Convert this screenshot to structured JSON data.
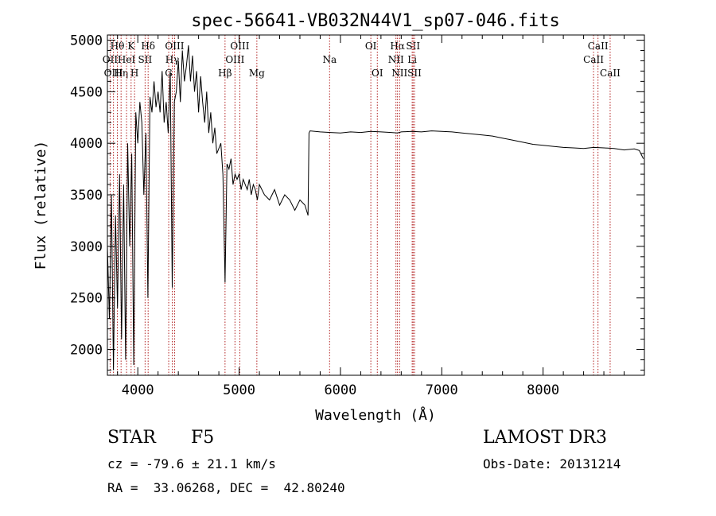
{
  "chart_data": {
    "type": "line",
    "title": "spec-56641-VB032N44V1_sp07-046.fits",
    "xlabel": "Wavelength (Å)",
    "ylabel": "Flux (relative)",
    "xlim": [
      3700,
      9000
    ],
    "ylim": [
      1750,
      5050
    ],
    "xticks": [
      4000,
      5000,
      6000,
      7000,
      8000
    ],
    "yticks": [
      2000,
      2500,
      3000,
      3500,
      4000,
      4500,
      5000
    ],
    "spectrum": {
      "name": "flux",
      "x": [
        3700,
        3720,
        3740,
        3760,
        3780,
        3800,
        3820,
        3840,
        3860,
        3880,
        3900,
        3920,
        3940,
        3960,
        3980,
        4000,
        4020,
        4040,
        4060,
        4080,
        4100,
        4120,
        4140,
        4160,
        4180,
        4200,
        4220,
        4240,
        4260,
        4280,
        4300,
        4320,
        4340,
        4360,
        4380,
        4400,
        4420,
        4440,
        4460,
        4480,
        4500,
        4520,
        4540,
        4560,
        4580,
        4600,
        4620,
        4640,
        4660,
        4680,
        4700,
        4720,
        4740,
        4760,
        4780,
        4800,
        4820,
        4840,
        4861,
        4880,
        4900,
        4920,
        4940,
        4960,
        4980,
        5000,
        5020,
        5040,
        5060,
        5080,
        5100,
        5120,
        5140,
        5160,
        5180,
        5200,
        5250,
        5300,
        5350,
        5400,
        5450,
        5500,
        5550,
        5600,
        5650,
        5680,
        5690,
        5700,
        5800,
        5900,
        6000,
        6100,
        6200,
        6300,
        6400,
        6500,
        6563,
        6600,
        6700,
        6800,
        6900,
        7000,
        7100,
        7200,
        7300,
        7400,
        7500,
        7600,
        7700,
        7800,
        7900,
        8000,
        8100,
        8200,
        8300,
        8400,
        8500,
        8600,
        8700,
        8800,
        8900,
        8950,
        8990
      ],
      "y": [
        3000,
        2300,
        3500,
        1800,
        3300,
        2400,
        3700,
        2100,
        3600,
        1900,
        4000,
        3000,
        3900,
        1850,
        4300,
        4000,
        4400,
        4200,
        3500,
        4100,
        2500,
        4450,
        4300,
        4600,
        4350,
        4500,
        4300,
        4700,
        4200,
        4400,
        4100,
        4700,
        2600,
        4400,
        4500,
        4800,
        4400,
        4900,
        4600,
        4750,
        4950,
        4600,
        4850,
        4500,
        4700,
        4300,
        4650,
        4400,
        4200,
        4500,
        4100,
        4300,
        4000,
        4150,
        3900,
        3950,
        4000,
        3700,
        2650,
        3800,
        3750,
        3850,
        3600,
        3700,
        3650,
        3700,
        3550,
        3650,
        3600,
        3550,
        3650,
        3500,
        3600,
        3550,
        3450,
        3600,
        3500,
        3450,
        3550,
        3400,
        3500,
        3450,
        3350,
        3450,
        3400,
        3300,
        4100,
        4120,
        4110,
        4105,
        4100,
        4110,
        4105,
        4115,
        4110,
        4105,
        4100,
        4110,
        4115,
        4110,
        4120,
        4115,
        4110,
        4100,
        4090,
        4080,
        4070,
        4050,
        4030,
        4010,
        3990,
        3980,
        3970,
        3960,
        3955,
        3950,
        3960,
        3955,
        3950,
        3935,
        3945,
        3930,
        3850
      ]
    },
    "lines": [
      {
        "name": "Hθ",
        "wavelength": 3798,
        "row": 1
      },
      {
        "name": "OII",
        "wavelength": 3727,
        "row": 2
      },
      {
        "name": "OIII",
        "wavelength": 3760,
        "row": 3
      },
      {
        "name": "Hη",
        "wavelength": 3835,
        "row": 3
      },
      {
        "name": "HeI",
        "wavelength": 3889,
        "row": 2
      },
      {
        "name": "K",
        "wavelength": 3934,
        "row": 1
      },
      {
        "name": "H",
        "wavelength": 3968,
        "row": 3
      },
      {
        "name": "SII",
        "wavelength": 4072,
        "row": 2
      },
      {
        "name": "Hδ",
        "wavelength": 4102,
        "row": 1
      },
      {
        "name": "OIII",
        "wavelength": 4363,
        "row": 1
      },
      {
        "name": "Hγ",
        "wavelength": 4340,
        "row": 2
      },
      {
        "name": "G",
        "wavelength": 4305,
        "row": 3
      },
      {
        "name": "Hβ",
        "wavelength": 4861,
        "row": 3
      },
      {
        "name": "OIII",
        "wavelength": 5007,
        "row": 1
      },
      {
        "name": "OIII",
        "wavelength": 4959,
        "row": 2
      },
      {
        "name": "Mg",
        "wavelength": 5175,
        "row": 3
      },
      {
        "name": "Na",
        "wavelength": 5893,
        "row": 2
      },
      {
        "name": "OI",
        "wavelength": 6300,
        "row": 1
      },
      {
        "name": "OI",
        "wavelength": 6364,
        "row": 3
      },
      {
        "name": "Hα",
        "wavelength": 6563,
        "row": 1
      },
      {
        "name": "NII",
        "wavelength": 6548,
        "row": 2
      },
      {
        "name": "NII",
        "wavelength": 6584,
        "row": 3
      },
      {
        "name": "SII",
        "wavelength": 6717,
        "row": 1
      },
      {
        "name": "Li",
        "wavelength": 6708,
        "row": 2
      },
      {
        "name": "SII",
        "wavelength": 6731,
        "row": 3
      },
      {
        "name": "CaII",
        "wavelength": 8542,
        "row": 1
      },
      {
        "name": "CaII",
        "wavelength": 8498,
        "row": 2
      },
      {
        "name": "CaII",
        "wavelength": 8662,
        "row": 3
      }
    ],
    "line_color": "#b22222",
    "spectrum_color": "#000000"
  },
  "info": {
    "class_label": "STAR",
    "subclass": "F5",
    "survey": "LAMOST DR3",
    "cz": "cz = -79.6 ± 21.1 km/s",
    "obs_date": "Obs-Date: 20131214",
    "coords": "RA =  33.06268, DEC =  42.80240"
  }
}
